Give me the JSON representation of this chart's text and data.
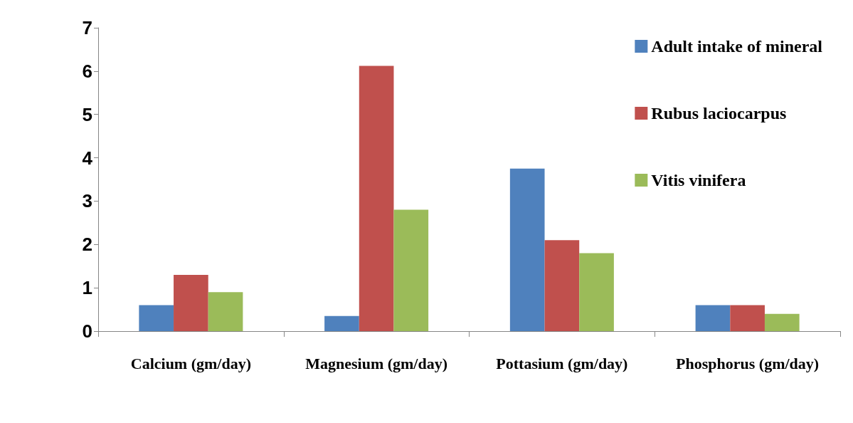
{
  "chart_data": {
    "type": "bar",
    "categories": [
      "Calcium (gm/day)",
      "Magnesium (gm/day)",
      "Pottasium (gm/day)",
      "Phosphorus (gm/day)"
    ],
    "series": [
      {
        "name": "Adult intake of mineral",
        "color": "#4f81bd",
        "values": [
          0.6,
          0.35,
          3.75,
          0.6
        ]
      },
      {
        "name": "Rubus laciocarpus",
        "color": "#c0504d",
        "values": [
          1.3,
          6.12,
          2.1,
          0.6
        ]
      },
      {
        "name": "Vitis vinifera",
        "color": "#9bbb59",
        "values": [
          0.9,
          2.8,
          1.8,
          0.4
        ]
      }
    ],
    "ylim": [
      0,
      7
    ],
    "yticks": [
      0,
      1,
      2,
      3,
      4,
      5,
      6,
      7
    ],
    "grid": false,
    "legend": "top right"
  }
}
